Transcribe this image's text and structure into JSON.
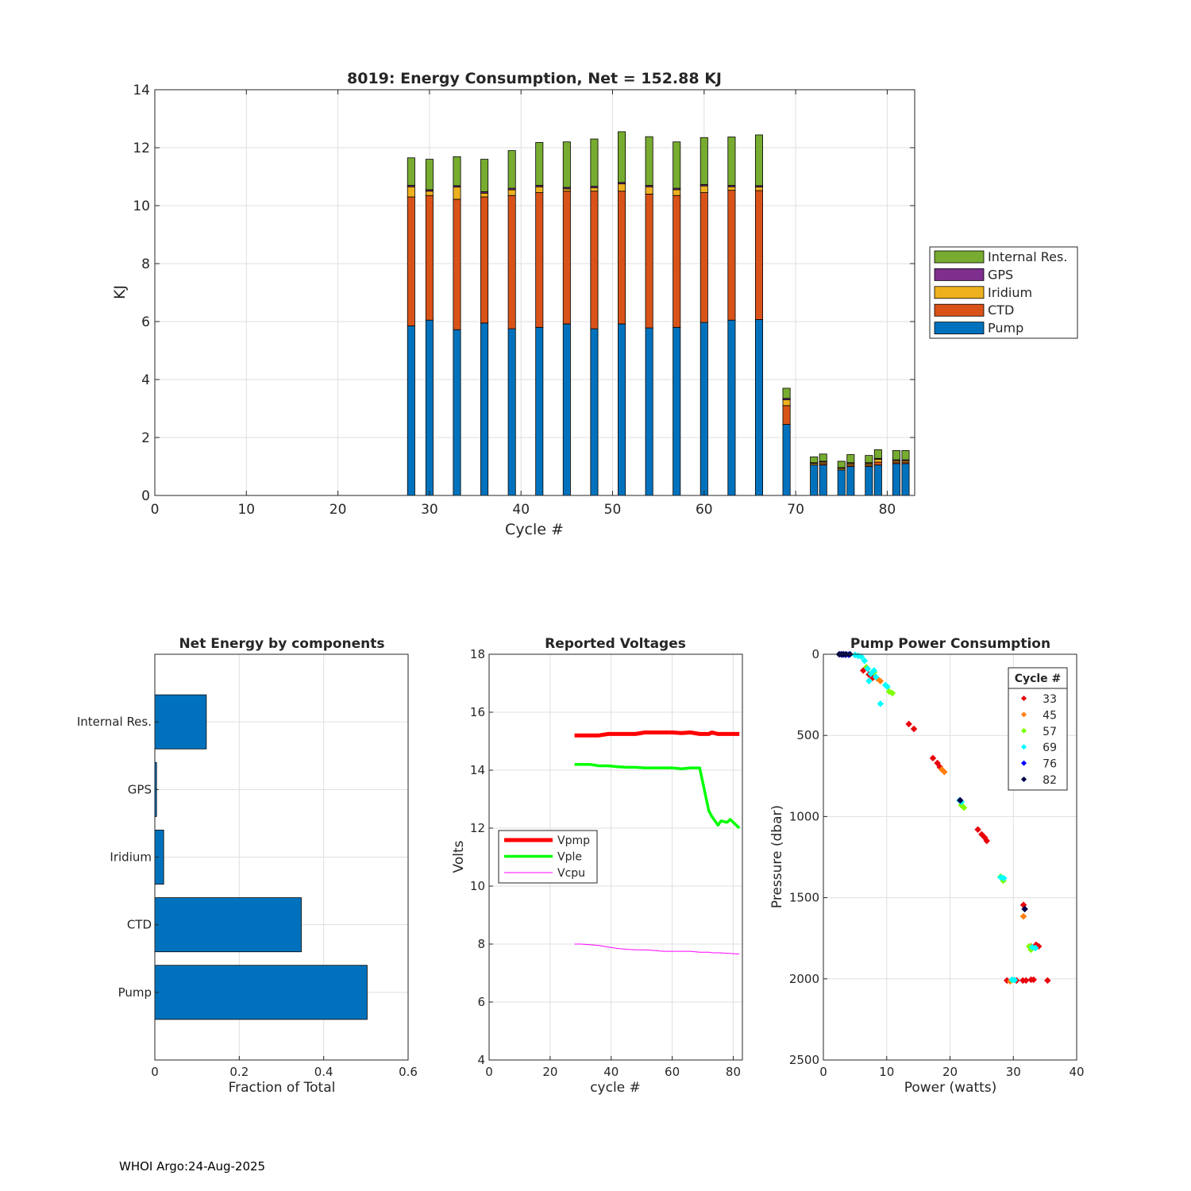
{
  "footer": "WHOI Argo:24-Aug-2025",
  "colors": {
    "pump": "#0072BD",
    "ctd": "#D95319",
    "iridium": "#EDB120",
    "gps": "#7E2F8E",
    "internal": "#77AC30",
    "vpmp": "#FF0000",
    "vple": "#00FF00",
    "vcpu": "#FF00FF"
  },
  "chart_data": [
    {
      "type": "bar",
      "stacked": true,
      "title": "8019: Energy Consumption,  Net = 152.88 KJ",
      "xlabel": "Cycle #",
      "ylabel": "KJ",
      "xlim": [
        0,
        83
      ],
      "ylim": [
        0,
        14
      ],
      "xticks": [
        0,
        10,
        20,
        30,
        40,
        50,
        60,
        70,
        80
      ],
      "yticks": [
        0,
        2,
        4,
        6,
        8,
        10,
        12,
        14
      ],
      "legend_position": "right",
      "legend": [
        "Internal Res.",
        "GPS",
        "Iridium",
        "CTD",
        "Pump"
      ],
      "cycles": [
        28,
        30,
        33,
        36,
        39,
        42,
        45,
        48,
        51,
        54,
        57,
        60,
        63,
        66,
        69,
        72,
        73,
        75,
        76,
        78,
        79,
        81,
        82
      ],
      "series": [
        {
          "name": "Pump",
          "values": [
            5.85,
            6.05,
            5.72,
            5.95,
            5.75,
            5.8,
            5.92,
            5.75,
            5.92,
            5.78,
            5.8,
            5.97,
            6.05,
            6.07,
            2.45,
            1.05,
            1.05,
            0.88,
            1.0,
            1.0,
            1.05,
            1.1,
            1.1
          ]
        },
        {
          "name": "CTD",
          "values": [
            4.45,
            4.3,
            4.5,
            4.35,
            4.6,
            4.65,
            4.58,
            4.75,
            4.58,
            4.62,
            4.55,
            4.48,
            4.48,
            4.45,
            0.65,
            0.0,
            0.05,
            0.0,
            0.05,
            0.05,
            0.1,
            0.05,
            0.05
          ]
        },
        {
          "name": "Iridium",
          "values": [
            0.35,
            0.15,
            0.42,
            0.13,
            0.2,
            0.2,
            0.08,
            0.12,
            0.25,
            0.25,
            0.2,
            0.23,
            0.12,
            0.12,
            0.2,
            0.05,
            0.05,
            0.05,
            0.05,
            0.05,
            0.1,
            0.05,
            0.05
          ]
        },
        {
          "name": "GPS",
          "values": [
            0.05,
            0.05,
            0.05,
            0.05,
            0.05,
            0.05,
            0.05,
            0.05,
            0.05,
            0.05,
            0.05,
            0.05,
            0.05,
            0.05,
            0.05,
            0.03,
            0.03,
            0.03,
            0.03,
            0.03,
            0.03,
            0.03,
            0.03
          ]
        },
        {
          "name": "Internal Res.",
          "values": [
            0.95,
            1.05,
            1.0,
            1.12,
            1.3,
            1.48,
            1.57,
            1.63,
            1.75,
            1.68,
            1.6,
            1.62,
            1.67,
            1.75,
            0.35,
            0.2,
            0.25,
            0.22,
            0.28,
            0.25,
            0.3,
            0.32,
            0.32
          ]
        }
      ]
    },
    {
      "type": "bar",
      "orientation": "horizontal",
      "title": "Net Energy by components",
      "xlabel": "Fraction of Total",
      "xlim": [
        0,
        0.6
      ],
      "xticks": [
        0,
        0.2,
        0.4,
        0.6
      ],
      "xtick_labels": [
        "0",
        "0.2",
        "0.4",
        "0.6"
      ],
      "categories": [
        "Internal Res.",
        "GPS",
        "Iridium",
        "CTD",
        "Pump"
      ],
      "values": [
        0.122,
        0.004,
        0.021,
        0.347,
        0.503
      ]
    },
    {
      "type": "line",
      "title": "Reported Voltages",
      "xlabel": "cycle #",
      "ylabel": "Volts",
      "xlim": [
        0,
        83
      ],
      "ylim": [
        4,
        18
      ],
      "xticks": [
        0,
        20,
        40,
        60,
        80
      ],
      "yticks": [
        4,
        6,
        8,
        10,
        12,
        14,
        16,
        18
      ],
      "legend_position": "center-left",
      "series": [
        {
          "name": "Vpmp",
          "x": [
            28,
            30,
            33,
            36,
            39,
            42,
            45,
            48,
            51,
            54,
            57,
            60,
            63,
            66,
            69,
            72,
            73,
            75,
            76,
            78,
            79,
            81,
            82
          ],
          "y": [
            15.2,
            15.2,
            15.2,
            15.2,
            15.25,
            15.25,
            15.25,
            15.25,
            15.3,
            15.3,
            15.3,
            15.3,
            15.28,
            15.3,
            15.25,
            15.25,
            15.3,
            15.25,
            15.25,
            15.25,
            15.25,
            15.25,
            15.25
          ]
        },
        {
          "name": "Vple",
          "x": [
            28,
            30,
            33,
            36,
            39,
            42,
            45,
            48,
            51,
            54,
            57,
            60,
            63,
            66,
            69,
            72,
            73,
            75,
            76,
            78,
            79,
            81,
            82
          ],
          "y": [
            14.2,
            14.2,
            14.2,
            14.15,
            14.15,
            14.12,
            14.1,
            14.1,
            14.08,
            14.08,
            14.08,
            14.08,
            14.05,
            14.08,
            14.08,
            12.6,
            12.4,
            12.1,
            12.25,
            12.2,
            12.3,
            12.1,
            12.0
          ]
        },
        {
          "name": "Vcpu",
          "x": [
            28,
            30,
            33,
            36,
            39,
            42,
            45,
            48,
            51,
            54,
            57,
            60,
            63,
            66,
            69,
            72,
            73,
            75,
            76,
            78,
            79,
            81,
            82
          ],
          "y": [
            8.0,
            8.0,
            7.98,
            7.95,
            7.9,
            7.85,
            7.82,
            7.8,
            7.8,
            7.78,
            7.75,
            7.75,
            7.75,
            7.75,
            7.72,
            7.72,
            7.7,
            7.7,
            7.7,
            7.68,
            7.68,
            7.66,
            7.66
          ]
        }
      ]
    },
    {
      "type": "scatter",
      "title": "Pump Power Consumption",
      "xlabel": "Power (watts)",
      "ylabel": "Pressure (dbar)",
      "xlim": [
        0,
        40
      ],
      "ylim": [
        0,
        2500
      ],
      "y_reversed": true,
      "xticks": [
        0,
        10,
        20,
        30,
        40
      ],
      "yticks": [
        0,
        500,
        1000,
        1500,
        2000,
        2500
      ],
      "legend_title": "Cycle #",
      "legend_position": "top-right",
      "series": [
        {
          "name": "33",
          "color": "#E8000B",
          "points": [
            [
              6.3,
              100
            ],
            [
              7.2,
              125
            ],
            [
              7.8,
              145
            ],
            [
              13.5,
              430
            ],
            [
              14.3,
              460
            ],
            [
              17.3,
              640
            ],
            [
              18.0,
              670
            ],
            [
              18.4,
              695
            ],
            [
              24.4,
              1080
            ],
            [
              25.0,
              1110
            ],
            [
              25.5,
              1130
            ],
            [
              25.8,
              1150
            ],
            [
              31.6,
              1545
            ],
            [
              33.6,
              1790
            ],
            [
              34.0,
              1800
            ],
            [
              29.0,
              2010
            ],
            [
              30.5,
              2010
            ],
            [
              31.5,
              2010
            ],
            [
              32.0,
              2010
            ],
            [
              32.8,
              2005
            ],
            [
              33.2,
              2005
            ],
            [
              35.4,
              2010
            ]
          ]
        },
        {
          "name": "45",
          "color": "#FF7F0E",
          "points": [
            [
              8.5,
              150
            ],
            [
              9.0,
              165
            ],
            [
              18.7,
              710
            ],
            [
              19.1,
              725
            ],
            [
              31.6,
              1615
            ],
            [
              32.8,
              1800
            ],
            [
              29.5,
              2015
            ]
          ]
        },
        {
          "name": "57",
          "color": "#7FFF00",
          "points": [
            [
              6.8,
              80
            ],
            [
              8.0,
              110
            ],
            [
              10.4,
              230
            ],
            [
              10.9,
              240
            ],
            [
              21.8,
              930
            ],
            [
              22.2,
              945
            ],
            [
              28.0,
              1370
            ],
            [
              28.4,
              1395
            ],
            [
              32.5,
              1800
            ],
            [
              32.8,
              1820
            ],
            [
              29.8,
              2008
            ]
          ]
        },
        {
          "name": "69",
          "color": "#00FFFF",
          "points": [
            [
              5.0,
              5
            ],
            [
              5.5,
              10
            ],
            [
              6.0,
              15
            ],
            [
              6.5,
              40
            ],
            [
              7.0,
              90
            ],
            [
              7.2,
              165
            ],
            [
              7.5,
              120
            ],
            [
              8.0,
              100
            ],
            [
              8.3,
              140
            ],
            [
              9.0,
              305
            ],
            [
              9.8,
              190
            ],
            [
              10.1,
              200
            ],
            [
              21.5,
              900
            ],
            [
              21.8,
              910
            ],
            [
              28.0,
              1375
            ],
            [
              28.5,
              1380
            ],
            [
              33.0,
              1805
            ],
            [
              33.5,
              1810
            ],
            [
              29.8,
              2005
            ],
            [
              30.2,
              2008
            ]
          ]
        },
        {
          "name": "76",
          "color": "#0000FF",
          "points": [
            [
              3.0,
              2
            ],
            [
              3.5,
              3
            ],
            [
              4.0,
              3
            ]
          ]
        },
        {
          "name": "82",
          "color": "#00004D",
          "points": [
            [
              2.5,
              0
            ],
            [
              2.8,
              0
            ],
            [
              3.2,
              0
            ],
            [
              3.6,
              0
            ],
            [
              4.2,
              0
            ],
            [
              21.6,
              900
            ],
            [
              31.8,
              1570
            ]
          ]
        }
      ]
    }
  ]
}
